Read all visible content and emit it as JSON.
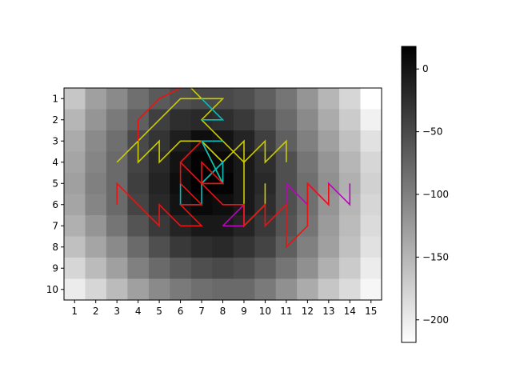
{
  "chart_data": {
    "type": "heatmap",
    "title": "",
    "xlabel": "",
    "ylabel": "",
    "x_ticks": [
      "1",
      "2",
      "3",
      "4",
      "5",
      "6",
      "7",
      "8",
      "9",
      "10",
      "11",
      "12",
      "13",
      "14",
      "15"
    ],
    "y_ticks": [
      "1",
      "2",
      "3",
      "4",
      "5",
      "6",
      "7",
      "8",
      "9",
      "10"
    ],
    "xlim": [
      0.5,
      15.5
    ],
    "ylim": [
      10.5,
      0.5
    ],
    "colormap": "gray_r",
    "grid": false,
    "colorbar": {
      "range": [
        -218,
        18
      ],
      "ticks": [
        0,
        -50,
        -100,
        -150,
        -200
      ],
      "tick_labels": [
        "0",
        "−50",
        "−100",
        "−150",
        "−200"
      ]
    },
    "heatmap_values": [
      [
        -165,
        -130,
        -110,
        -85,
        -65,
        -55,
        -50,
        -50,
        -55,
        -70,
        -90,
        -120,
        -150,
        -180,
        -218
      ],
      [
        -150,
        -120,
        -95,
        -70,
        -40,
        -25,
        -20,
        -25,
        -35,
        -55,
        -80,
        -110,
        -140,
        -170,
        -205
      ],
      [
        -140,
        -110,
        -85,
        -50,
        -30,
        -10,
        5,
        0,
        -15,
        -40,
        -70,
        -100,
        -130,
        -160,
        -190
      ],
      [
        -135,
        -105,
        -80,
        -45,
        -20,
        0,
        15,
        10,
        -5,
        -25,
        -55,
        -90,
        -120,
        -150,
        -180
      ],
      [
        -130,
        -100,
        -80,
        -40,
        -15,
        5,
        18,
        15,
        -5,
        -20,
        -55,
        -85,
        -115,
        -145,
        -175
      ],
      [
        -135,
        -105,
        -80,
        -45,
        -20,
        0,
        10,
        5,
        -5,
        -25,
        -55,
        -85,
        -120,
        -150,
        -180
      ],
      [
        -145,
        -120,
        -90,
        -60,
        -35,
        -15,
        -5,
        -5,
        -15,
        -35,
        -60,
        -90,
        -125,
        -155,
        -185
      ],
      [
        -160,
        -135,
        -110,
        -80,
        -55,
        -35,
        -25,
        -20,
        -30,
        -45,
        -70,
        -100,
        -130,
        -160,
        -190
      ],
      [
        -180,
        -155,
        -130,
        -100,
        -80,
        -65,
        -55,
        -50,
        -55,
        -70,
        -90,
        -115,
        -145,
        -170,
        -200
      ],
      [
        -200,
        -180,
        -155,
        -130,
        -110,
        -95,
        -85,
        -80,
        -80,
        -95,
        -115,
        -140,
        -165,
        -185,
        -210
      ]
    ],
    "series": [
      {
        "color": "#cccc00",
        "points": [
          [
            3,
            4
          ],
          [
            4,
            3
          ],
          [
            4,
            4
          ],
          [
            5,
            3
          ],
          [
            5,
            4
          ],
          [
            6,
            3
          ],
          [
            7,
            3
          ],
          [
            8,
            4
          ],
          [
            9,
            3
          ],
          [
            9,
            4
          ],
          [
            10,
            3
          ],
          [
            10,
            4
          ],
          [
            11,
            3
          ],
          [
            11,
            4
          ]
        ]
      },
      {
        "color": "#cccc00",
        "points": [
          [
            4,
            3
          ],
          [
            5,
            2
          ],
          [
            6,
            1
          ],
          [
            7,
            1
          ],
          [
            6.5,
            0.5
          ],
          [
            7,
            1
          ],
          [
            8,
            1
          ],
          [
            7,
            2
          ],
          [
            9,
            4
          ],
          [
            9,
            7
          ],
          [
            10,
            6
          ],
          [
            10,
            5
          ]
        ]
      },
      {
        "color": "#cccc00",
        "points": [
          [
            7,
            5
          ],
          [
            8,
            4
          ],
          [
            7,
            3
          ],
          [
            8,
            5
          ],
          [
            7,
            5
          ]
        ]
      },
      {
        "color": "#00bfbf",
        "points": [
          [
            7,
            1
          ],
          [
            8,
            2
          ],
          [
            7,
            2
          ]
        ]
      },
      {
        "color": "#00bfbf",
        "points": [
          [
            6,
            5
          ],
          [
            6,
            6
          ],
          [
            7,
            6
          ],
          [
            7,
            5
          ],
          [
            8,
            4
          ],
          [
            8,
            5
          ],
          [
            7,
            3
          ],
          [
            8,
            3
          ]
        ]
      },
      {
        "color": "#bf00bf",
        "points": [
          [
            8,
            7
          ],
          [
            9,
            6
          ],
          [
            9,
            7
          ],
          [
            8,
            7
          ]
        ]
      },
      {
        "color": "#bf00bf",
        "points": [
          [
            11,
            6
          ],
          [
            11,
            5
          ],
          [
            12,
            6
          ],
          [
            12,
            5
          ],
          [
            13,
            6
          ],
          [
            13,
            5
          ],
          [
            14,
            6
          ],
          [
            14,
            5
          ]
        ]
      },
      {
        "color": "#ee1111",
        "points": [
          [
            4,
            3
          ],
          [
            4,
            2
          ],
          [
            5,
            1
          ],
          [
            6,
            0.5
          ]
        ]
      },
      {
        "color": "#ee1111",
        "points": [
          [
            3,
            6
          ],
          [
            3,
            5
          ],
          [
            4,
            6
          ],
          [
            5,
            7
          ],
          [
            5,
            6
          ],
          [
            6,
            7
          ],
          [
            7,
            7
          ],
          [
            6,
            6
          ],
          [
            7,
            6
          ],
          [
            6,
            5
          ],
          [
            6,
            4
          ],
          [
            7,
            3
          ],
          [
            6,
            4
          ],
          [
            7,
            5
          ],
          [
            8,
            5
          ],
          [
            7,
            4
          ],
          [
            7,
            5
          ],
          [
            6,
            4
          ],
          [
            8,
            6
          ],
          [
            9,
            6
          ],
          [
            9,
            7
          ],
          [
            10,
            6
          ],
          [
            10,
            7
          ],
          [
            11,
            6
          ],
          [
            11,
            8
          ],
          [
            12,
            7
          ],
          [
            12,
            5
          ],
          [
            13,
            6
          ],
          [
            13,
            5
          ]
        ]
      }
    ]
  }
}
